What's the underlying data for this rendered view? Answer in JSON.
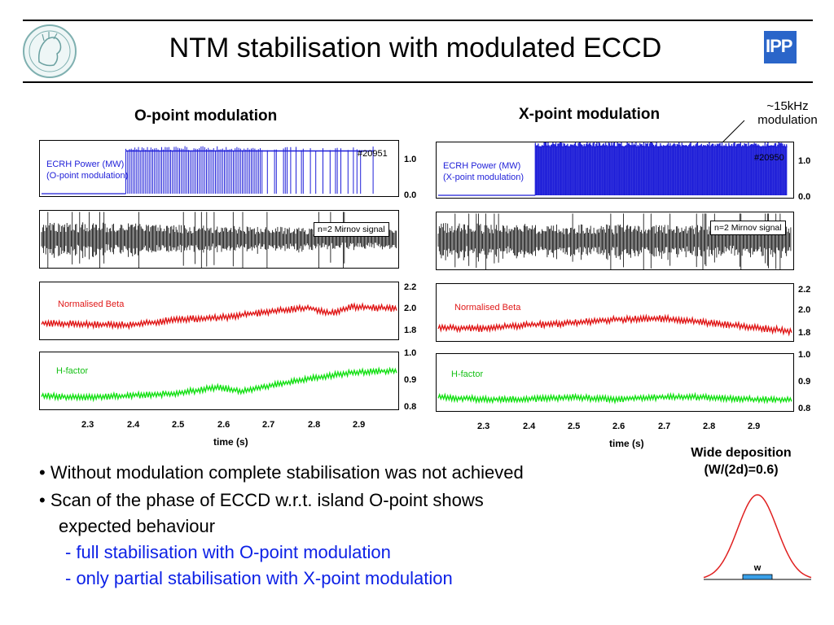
{
  "header": {
    "title": "NTM stabilisation with modulated ECCD",
    "logo_left_icon": "minerva-logo-icon",
    "logo_right_text": "IPP"
  },
  "colors": {
    "ecrh": "#1f1fd8",
    "mirnov": "#000000",
    "beta": "#e01818",
    "hfactor": "#14e014",
    "subbullet": "#0d21e6",
    "gauss_fill": "#3aa0e8",
    "gauss_line": "#e02020"
  },
  "left": {
    "title": "O-point modulation",
    "ecrh_label_1": "ECRH Power (MW)",
    "ecrh_label_2": "(O-point modulation)",
    "shot": "#20951",
    "mirnov_label": "n=2 Mirnov signal",
    "beta_label": "Normalised Beta",
    "h_label": "H-factor",
    "ecrh_ticks": [
      "1.0",
      "0.0"
    ],
    "beta_ticks": [
      "2.2",
      "2.0",
      "1.8"
    ],
    "h_ticks": [
      "1.0",
      "0.9",
      "0.8"
    ],
    "xticks": [
      "2.3",
      "2.4",
      "2.5",
      "2.6",
      "2.7",
      "2.8",
      "2.9"
    ],
    "xlabel": "time  (s)"
  },
  "right": {
    "title": "X-point modulation",
    "ecrh_label_1": "ECRH Power (MW)",
    "ecrh_label_2": "(X-point modulation)",
    "shot": "#20950",
    "mirnov_label": "n=2 Mirnov signal",
    "beta_label": "Normalised Beta",
    "h_label": "H-factor",
    "ecrh_ticks": [
      "1.0",
      "0.0"
    ],
    "beta_ticks": [
      "2.2",
      "2.0",
      "1.8"
    ],
    "h_ticks": [
      "1.0",
      "0.9",
      "0.8"
    ],
    "xticks": [
      "2.3",
      "2.4",
      "2.5",
      "2.6",
      "2.7",
      "2.8",
      "2.9"
    ],
    "xlabel": "time  (s)"
  },
  "annotation": {
    "line1": "~15kHz",
    "line2": "modulation"
  },
  "bullets": {
    "b1": "• Without modulation complete stabilisation was not achieved",
    "b2": "• Scan of the phase of ECCD w.r.t. island O-point shows",
    "b2_cont": "expected behaviour",
    "s1": "- full stabilisation with O-point modulation",
    "s2": "- only partial stabilisation with X-point modulation"
  },
  "deposition": {
    "line1": "Wide deposition",
    "line2": "(W/(2d)=0.6)",
    "w_label": "w"
  },
  "chart_data": [
    {
      "type": "line",
      "title": "O-point modulation",
      "shot": "#20951",
      "xlabel": "time  (s)",
      "xlim": [
        2.2,
        3.0
      ],
      "xticks": [
        2.3,
        2.4,
        2.5,
        2.6,
        2.7,
        2.8,
        2.9
      ],
      "series": [
        {
          "name": "ECRH Power (MW)",
          "ylim": [
            0.0,
            1.3
          ],
          "modulation": "O-point",
          "points": [
            [
              2.2,
              0.0
            ],
            [
              2.38,
              0.0
            ],
            [
              2.39,
              1.1
            ],
            [
              2.95,
              1.1
            ],
            [
              2.96,
              0.0
            ],
            [
              3.0,
              0.0
            ]
          ]
        },
        {
          "name": "n=2 Mirnov signal",
          "amplitude_trend": [
            [
              2.2,
              1.0
            ],
            [
              2.6,
              0.75
            ],
            [
              3.0,
              0.55
            ]
          ]
        },
        {
          "name": "Normalised Beta",
          "ylim": [
            1.7,
            2.25
          ],
          "points": [
            [
              2.2,
              1.84
            ],
            [
              2.3,
              1.83
            ],
            [
              2.4,
              1.82
            ],
            [
              2.5,
              1.88
            ],
            [
              2.6,
              1.9
            ],
            [
              2.7,
              1.96
            ],
            [
              2.8,
              2.01
            ],
            [
              2.85,
              1.95
            ],
            [
              2.9,
              2.02
            ],
            [
              3.0,
              2.0
            ]
          ]
        },
        {
          "name": "H-factor",
          "ylim": [
            0.78,
            1.02
          ],
          "points": [
            [
              2.2,
              0.83
            ],
            [
              2.3,
              0.82
            ],
            [
              2.4,
              0.83
            ],
            [
              2.5,
              0.84
            ],
            [
              2.6,
              0.87
            ],
            [
              2.65,
              0.85
            ],
            [
              2.7,
              0.87
            ],
            [
              2.8,
              0.91
            ],
            [
              2.9,
              0.94
            ],
            [
              3.0,
              0.95
            ]
          ]
        }
      ]
    },
    {
      "type": "line",
      "title": "X-point modulation",
      "shot": "#20950",
      "xlabel": "time  (s)",
      "xlim": [
        2.2,
        3.0
      ],
      "xticks": [
        2.3,
        2.4,
        2.5,
        2.6,
        2.7,
        2.8,
        2.9
      ],
      "series": [
        {
          "name": "ECRH Power (MW)",
          "ylim": [
            0.0,
            1.3
          ],
          "modulation": "X-point",
          "points": [
            [
              2.2,
              0.0
            ],
            [
              2.41,
              0.0
            ],
            [
              2.42,
              1.25
            ],
            [
              2.99,
              1.25
            ],
            [
              3.0,
              0.0
            ]
          ]
        },
        {
          "name": "n=2 Mirnov signal",
          "amplitude_trend": [
            [
              2.2,
              1.0
            ],
            [
              2.6,
              0.9
            ],
            [
              3.0,
              0.85
            ]
          ]
        },
        {
          "name": "Normalised Beta",
          "ylim": [
            1.7,
            2.25
          ],
          "points": [
            [
              2.2,
              1.81
            ],
            [
              2.3,
              1.8
            ],
            [
              2.4,
              1.84
            ],
            [
              2.5,
              1.86
            ],
            [
              2.6,
              1.9
            ],
            [
              2.7,
              1.91
            ],
            [
              2.8,
              1.87
            ],
            [
              2.9,
              1.82
            ],
            [
              3.0,
              1.77
            ]
          ]
        },
        {
          "name": "H-factor",
          "ylim": [
            0.78,
            1.02
          ],
          "points": [
            [
              2.2,
              0.83
            ],
            [
              2.3,
              0.82
            ],
            [
              2.4,
              0.82
            ],
            [
              2.5,
              0.83
            ],
            [
              2.6,
              0.82
            ],
            [
              2.7,
              0.83
            ],
            [
              2.8,
              0.83
            ],
            [
              2.9,
              0.82
            ],
            [
              3.0,
              0.82
            ]
          ]
        }
      ]
    }
  ]
}
